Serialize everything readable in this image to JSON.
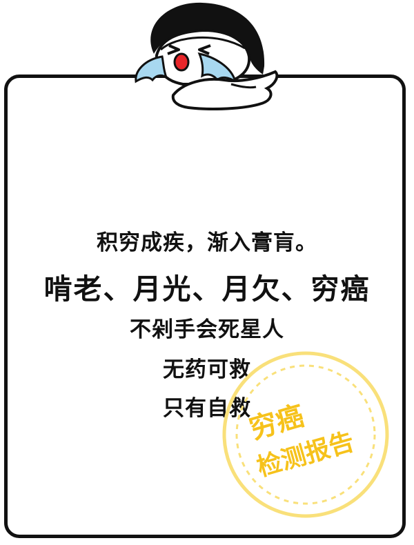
{
  "poster": {
    "lines": [
      "积穷成疾，渐入膏肓。",
      "啃老、月光、月欠、穷癌",
      "不剁手会死星人",
      "无药可救",
      "只有自救"
    ]
  },
  "stamp": {
    "line1": "穷癌",
    "line2": "检测报告",
    "color": "#f6c21b"
  },
  "colors": {
    "border": "#111111",
    "text": "#111111",
    "tears": "#a8d8f0",
    "mouth": "#e8262a"
  },
  "icons": [
    "crying-girl-icon",
    "stamp-circle-icon"
  ]
}
